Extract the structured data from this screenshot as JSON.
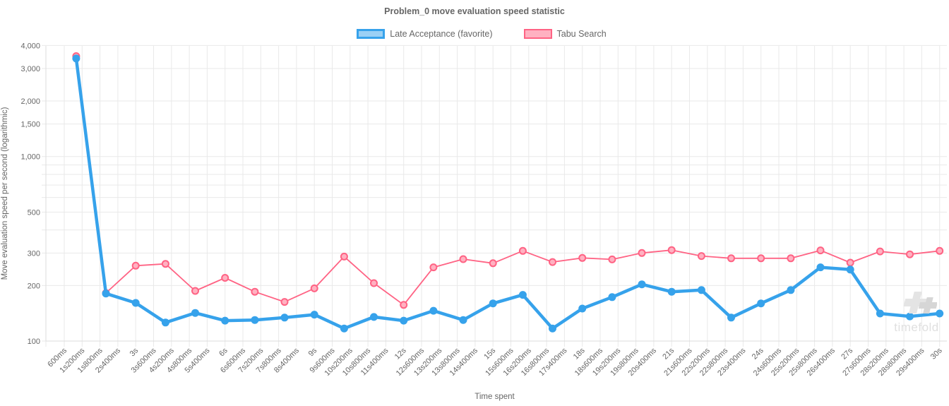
{
  "header": {
    "title": "Problem_0 move evaluation speed statistic"
  },
  "watermark": {
    "text": "timefold"
  },
  "chart_data": {
    "type": "line",
    "title": "Problem_0 move evaluation speed statistic",
    "xlabel": "Time spent",
    "ylabel": "Move evaluation speed per second (logarithmic)",
    "y_scale": "logarithmic",
    "ylim": [
      100,
      4000
    ],
    "grid": true,
    "legend_position": "top",
    "x_tick_labels": [
      "600ms",
      "1s200ms",
      "1s800ms",
      "2s400ms",
      "3s",
      "3s600ms",
      "4s200ms",
      "4s800ms",
      "5s400ms",
      "6s",
      "6s600ms",
      "7s200ms",
      "7s800ms",
      "8s400ms",
      "9s",
      "9s600ms",
      "10s200ms",
      "10s800ms",
      "11s400ms",
      "12s",
      "12s600ms",
      "13s200ms",
      "13s800ms",
      "14s400ms",
      "15s",
      "15s600ms",
      "16s200ms",
      "16s800ms",
      "17s400ms",
      "18s",
      "18s600ms",
      "19s200ms",
      "19s800ms",
      "20s400ms",
      "21s",
      "21s600ms",
      "22s200ms",
      "22s800ms",
      "23s400ms",
      "24s",
      "24s600ms",
      "25s200ms",
      "25s800ms",
      "26s400ms",
      "27s",
      "27s600ms",
      "28s200ms",
      "28s800ms",
      "29s400ms",
      "30s"
    ],
    "x_tick_seconds": [
      0.6,
      1.2,
      1.8,
      2.4,
      3,
      3.6,
      4.2,
      4.8,
      5.4,
      6,
      6.6,
      7.2,
      7.8,
      8.4,
      9,
      9.6,
      10.2,
      10.8,
      11.4,
      12,
      12.6,
      13.2,
      13.8,
      14.4,
      15,
      15.6,
      16.2,
      16.8,
      17.4,
      18,
      18.6,
      19.2,
      19.8,
      20.4,
      21,
      21.6,
      22.2,
      22.8,
      23.4,
      24,
      24.6,
      25.2,
      25.8,
      26.4,
      27,
      27.6,
      28.2,
      28.8,
      29.4,
      30
    ],
    "y_tick_labels": [
      "4,000",
      "3,000",
      "2,000",
      "1,500",
      "1,000",
      "500",
      "300",
      "200",
      "100"
    ],
    "y_tick_values": [
      4000,
      3000,
      2000,
      1500,
      1000,
      500,
      300,
      200,
      100
    ],
    "y_minor_gridlines": [
      900,
      800,
      700,
      600,
      400
    ],
    "x_seconds": [
      1,
      2,
      3,
      4,
      5,
      6,
      7,
      8,
      9,
      10,
      11,
      12,
      13,
      14,
      15,
      16,
      17,
      18,
      19,
      20,
      21,
      22,
      23,
      24,
      25,
      26,
      27,
      28,
      29,
      30
    ],
    "series": [
      {
        "name": "Late Acceptance (favorite)",
        "color": "#36a2eb",
        "fill_color": "#9ad0f5",
        "point_fill": "#36a2eb",
        "line_width": 4.5,
        "point_radius": 5.5,
        "point_stroke_width": 0,
        "values": [
          3400,
          181,
          161,
          126,
          142,
          129,
          130,
          134,
          139,
          117,
          135,
          129,
          146,
          130,
          160,
          178,
          117,
          150,
          173,
          203,
          185,
          189,
          134,
          160,
          189,
          251,
          244,
          141,
          136,
          141
        ]
      },
      {
        "name": "Tabu Search",
        "color": "#ff6384",
        "fill_color": "#ffb1c1",
        "point_fill": "#ffb1c1",
        "line_width": 1.8,
        "point_radius": 4.5,
        "point_stroke_width": 2,
        "values": [
          3500,
          182,
          256,
          262,
          187,
          220,
          185,
          163,
          193,
          287,
          206,
          157,
          251,
          278,
          264,
          308,
          268,
          282,
          277,
          300,
          311,
          289,
          281,
          281,
          281,
          310,
          266,
          306,
          295,
          308
        ]
      }
    ]
  }
}
